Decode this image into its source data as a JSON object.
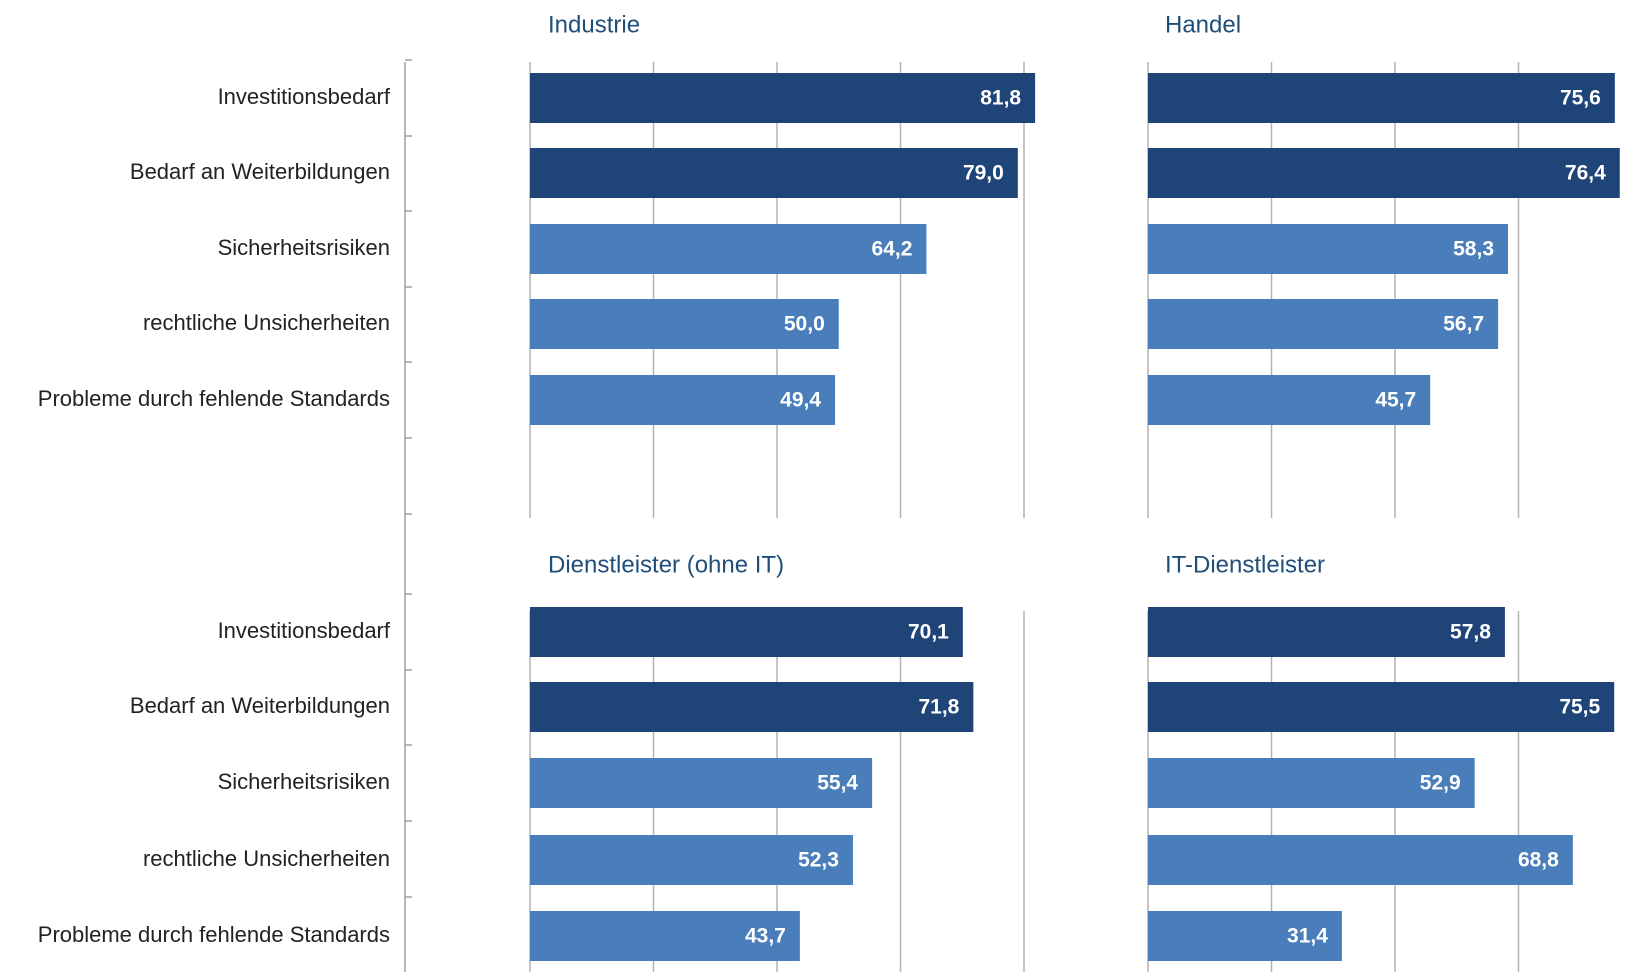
{
  "colors": {
    "dark_bar": "#1e4478",
    "light_bar": "#4a7ebb",
    "gridline": "#b4b4b4",
    "axis": "#a0a0a0",
    "title": "#1f4e79",
    "value_text": "#ffffff",
    "label_text": "#222222"
  },
  "chart_data": [
    {
      "type": "bar",
      "orientation": "horizontal",
      "title": "Industrie",
      "categories": [
        "Investitionsbedarf",
        "Bedarf an Weiterbildungen",
        "Sicherheitsrisiken",
        "rechtliche Unsicherheiten",
        "Probleme durch fehlende Standards"
      ],
      "values": [
        81.8,
        79.0,
        64.2,
        50.0,
        49.4
      ],
      "value_labels": [
        "81,8",
        "79,0",
        "64,2",
        "50,0",
        "49,4"
      ],
      "bar_shades": [
        "dark",
        "dark",
        "light",
        "light",
        "light"
      ],
      "xlim": [
        0,
        80
      ],
      "grid": true
    },
    {
      "type": "bar",
      "orientation": "horizontal",
      "title": "Handel",
      "categories": [
        "Investitionsbedarf",
        "Bedarf an Weiterbildungen",
        "Sicherheitsrisiken",
        "rechtliche Unsicherheiten",
        "Probleme durch fehlende Standards"
      ],
      "values": [
        75.6,
        76.4,
        58.3,
        56.7,
        45.7
      ],
      "value_labels": [
        "75,6",
        "76,4",
        "58,3",
        "56,7",
        "45,7"
      ],
      "bar_shades": [
        "dark",
        "dark",
        "light",
        "light",
        "light"
      ],
      "xlim": [
        0,
        80
      ],
      "grid": true
    },
    {
      "type": "bar",
      "orientation": "horizontal",
      "title": "Dienstleister (ohne IT)",
      "categories": [
        "Investitionsbedarf",
        "Bedarf an Weiterbildungen",
        "Sicherheitsrisiken",
        "rechtliche Unsicherheiten",
        "Probleme durch fehlende Standards"
      ],
      "values": [
        70.1,
        71.8,
        55.4,
        52.3,
        43.7
      ],
      "value_labels": [
        "70,1",
        "71,8",
        "55,4",
        "52,3",
        "43,7"
      ],
      "bar_shades": [
        "dark",
        "dark",
        "light",
        "light",
        "light"
      ],
      "xlim": [
        0,
        80
      ],
      "grid": true
    },
    {
      "type": "bar",
      "orientation": "horizontal",
      "title": "IT-Dienstleister",
      "categories": [
        "Investitionsbedarf",
        "Bedarf an Weiterbildungen",
        "Sicherheitsrisiken",
        "rechtliche Unsicherheiten",
        "Probleme durch fehlende Standards"
      ],
      "values": [
        57.8,
        75.5,
        52.9,
        68.8,
        31.4
      ],
      "value_labels": [
        "57,8",
        "75,5",
        "52,9",
        "68,8",
        "31,4"
      ],
      "bar_shades": [
        "dark",
        "dark",
        "light",
        "light",
        "light"
      ],
      "xlim": [
        0,
        80
      ],
      "grid": true
    }
  ]
}
